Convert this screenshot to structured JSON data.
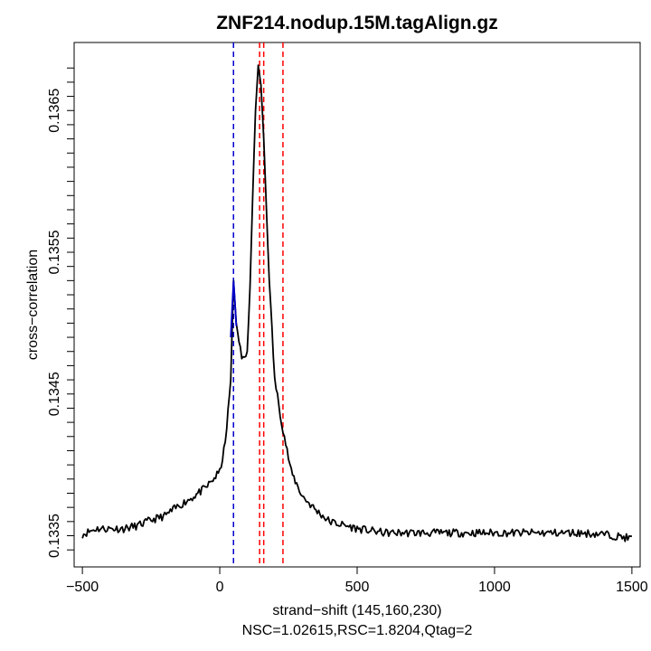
{
  "chart_data": {
    "type": "line",
    "title": "ZNF214.nodup.15M.tagAlign.gz",
    "xlabel": "strand−shift (145,160,230)",
    "subtitle": "NSC=1.02615,RSC=1.8204,Qtag=2",
    "ylabel": "cross−correlation",
    "xlim": [
      -530,
      1530
    ],
    "ylim": [
      0.13328,
      0.13698
    ],
    "x_ticks": [
      -500,
      0,
      500,
      1000,
      1500
    ],
    "x_tick_labels": [
      "−500",
      "0",
      "500",
      "1000",
      "1500"
    ],
    "y_ticks": [
      0.1335,
      0.1345,
      0.1355,
      0.1365
    ],
    "y_tick_labels": [
      "0.1335",
      "0.1345",
      "0.1355",
      "0.1365"
    ],
    "y_minor_ticks": [
      0.1334,
      0.1336,
      0.1337,
      0.1338,
      0.1339,
      0.134,
      0.1341,
      0.1342,
      0.1343,
      0.1344,
      0.1346,
      0.1347,
      0.1348,
      0.1349,
      0.135,
      0.1351,
      0.1352,
      0.1353,
      0.1354,
      0.1356,
      0.1357,
      0.1358,
      0.1359,
      0.136,
      0.1361,
      0.1362,
      0.1363,
      0.1364,
      0.1366,
      0.1367,
      0.1368
    ],
    "grid": false,
    "series": [
      {
        "color": "#000000",
        "x": [
          -500,
          -450,
          -400,
          -350,
          -300,
          -250,
          -200,
          -150,
          -100,
          -50,
          0,
          20,
          40,
          50,
          60,
          80,
          100,
          110,
          120,
          130,
          140,
          150,
          160,
          170,
          180,
          200,
          230,
          260,
          300,
          350,
          400,
          500,
          600,
          700,
          800,
          900,
          1000,
          1100,
          1200,
          1300,
          1400,
          1500
        ],
        "y": [
          0.13351,
          0.13355,
          0.13355,
          0.13355,
          0.13357,
          0.13361,
          0.13364,
          0.13371,
          0.13377,
          0.13384,
          0.13395,
          0.13415,
          0.1346,
          0.1353,
          0.135,
          0.13475,
          0.1348,
          0.13525,
          0.1359,
          0.1365,
          0.13682,
          0.13668,
          0.1363,
          0.1358,
          0.1353,
          0.1346,
          0.13425,
          0.13395,
          0.13378,
          0.13368,
          0.1336,
          0.13355,
          0.13352,
          0.13352,
          0.13352,
          0.13352,
          0.13352,
          0.13352,
          0.13352,
          0.13352,
          0.13351,
          0.13348
        ]
      },
      {
        "color": "#0000cc",
        "x": [
          40,
          45,
          50,
          55,
          60
        ],
        "y": [
          0.1349,
          0.1351,
          0.1353,
          0.13515,
          0.13498
        ]
      }
    ],
    "vlines": [
      {
        "x": 50,
        "color": "#0000cc"
      },
      {
        "x": 145,
        "color": "#ff0000"
      },
      {
        "x": 160,
        "color": "#ff0000"
      },
      {
        "x": 230,
        "color": "#ff0000"
      }
    ]
  }
}
